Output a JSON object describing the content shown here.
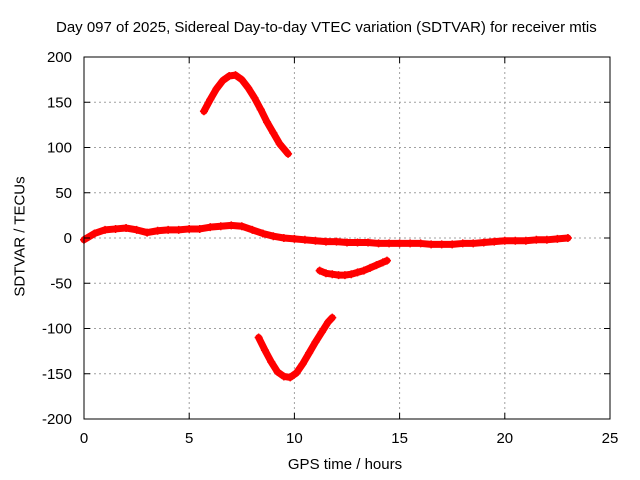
{
  "chart_data": {
    "type": "scatter",
    "title": "Day 097 of 2025, Sidereal Day-to-day VTEC variation (SDTVAR) for receiver mtis",
    "xlabel": "GPS time / hours",
    "ylabel": "SDTVAR / TECUs",
    "xlim": [
      0,
      25
    ],
    "ylim": [
      -200,
      200
    ],
    "xticks": [
      0,
      5,
      10,
      15,
      20,
      25
    ],
    "yticks": [
      -200,
      -150,
      -100,
      -50,
      0,
      50,
      100,
      150,
      200
    ],
    "grid": true,
    "marker": "plus",
    "color": "#ff0000",
    "series": [
      {
        "name": "main-band",
        "x": [
          0,
          0.5,
          1,
          1.5,
          2,
          2.5,
          3,
          3.5,
          4,
          4.5,
          5,
          5.5,
          6,
          6.5,
          7,
          7.5,
          8,
          8.5,
          9,
          9.5,
          10,
          10.5,
          11,
          11.5,
          12,
          12.5,
          13,
          13.5,
          14,
          14.5,
          15,
          15.5,
          16,
          16.5,
          17,
          17.5,
          18,
          18.5,
          19,
          19.5,
          20,
          20.5,
          21,
          21.5,
          22,
          22.5,
          23
        ],
        "y": [
          -2,
          5,
          9,
          10,
          11,
          9,
          6,
          8,
          9,
          9,
          10,
          10,
          12,
          13,
          14,
          13,
          9,
          5,
          2,
          0,
          -1,
          -2,
          -3,
          -4,
          -4,
          -5,
          -5,
          -5,
          -6,
          -6,
          -6,
          -6,
          -6,
          -7,
          -7,
          -7,
          -6,
          -6,
          -5,
          -4,
          -3,
          -3,
          -3,
          -2,
          -2,
          -1,
          0
        ]
      },
      {
        "name": "arc-high",
        "x": [
          5.7,
          6.0,
          6.3,
          6.6,
          6.9,
          7.2,
          7.5,
          7.8,
          8.1,
          8.4,
          8.7,
          9.0,
          9.3,
          9.7
        ],
        "y": [
          140,
          153,
          165,
          174,
          179,
          180,
          175,
          166,
          155,
          142,
          128,
          116,
          104,
          93
        ]
      },
      {
        "name": "arc-mid",
        "x": [
          11.2,
          11.5,
          11.8,
          12.1,
          12.4,
          12.7,
          13.0,
          13.3,
          13.6,
          13.9,
          14.2,
          14.4
        ],
        "y": [
          -36,
          -39,
          -40,
          -41,
          -41,
          -40,
          -38,
          -36,
          -33,
          -30,
          -27,
          -25
        ]
      },
      {
        "name": "arc-low",
        "x": [
          8.3,
          8.6,
          8.9,
          9.2,
          9.5,
          9.8,
          10.1,
          10.4,
          10.7,
          11.0,
          11.3,
          11.6,
          11.8
        ],
        "y": [
          -110,
          -124,
          -137,
          -148,
          -153,
          -154,
          -149,
          -139,
          -127,
          -115,
          -104,
          -93,
          -88
        ]
      }
    ]
  }
}
